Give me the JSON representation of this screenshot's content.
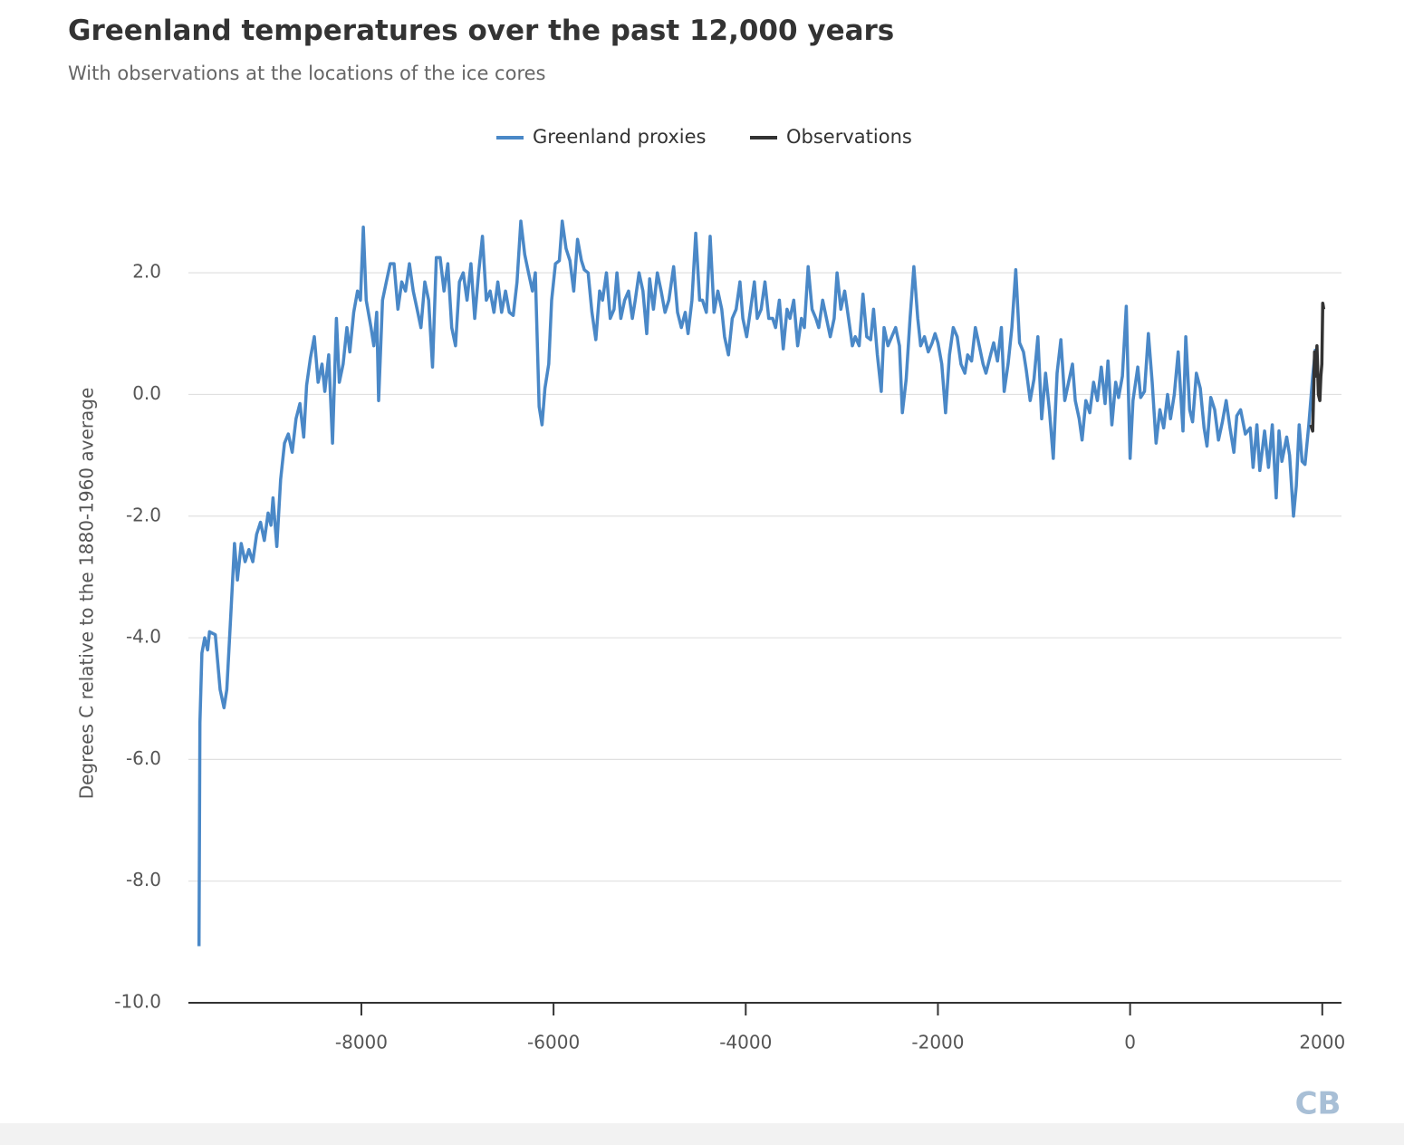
{
  "chart_data": {
    "type": "line",
    "title": "Greenland temperatures over the past 12,000 years",
    "subtitle": "With observations at the locations of the ice cores",
    "y_label": "Degrees C relative to the 1880-1960 average",
    "logo": "CB",
    "xlim": [
      -9800,
      2200
    ],
    "xticks": [
      -8000,
      -6000,
      -4000,
      -2000,
      0,
      2000
    ],
    "ylim": [
      -10,
      3
    ],
    "yticks": [
      {
        "value": -10,
        "label": "-10.0"
      },
      {
        "value": -8,
        "label": "-8.0"
      },
      {
        "value": -6,
        "label": "-6.0"
      },
      {
        "value": -4,
        "label": "-4.0"
      },
      {
        "value": -2,
        "label": "-2.0"
      },
      {
        "value": 0,
        "label": "0.0"
      },
      {
        "value": 2,
        "label": "2.0"
      }
    ],
    "grid": true,
    "legend": "top",
    "series": [
      {
        "name": "Greenland proxies",
        "color": "#4a88c7",
        "x": [
          -9690,
          -9680,
          -9660,
          -9630,
          -9600,
          -9580,
          -9520,
          -9470,
          -9430,
          -9400,
          -9360,
          -9320,
          -9290,
          -9250,
          -9210,
          -9170,
          -9130,
          -9090,
          -9050,
          -9010,
          -8970,
          -8940,
          -8920,
          -8880,
          -8840,
          -8800,
          -8760,
          -8720,
          -8680,
          -8640,
          -8600,
          -8570,
          -8530,
          -8490,
          -8450,
          -8410,
          -8380,
          -8340,
          -8300,
          -8260,
          -8230,
          -8190,
          -8150,
          -8120,
          -8080,
          -8040,
          -8010,
          -7980,
          -7950,
          -7900,
          -7870,
          -7840,
          -7820,
          -7780,
          -7740,
          -7700,
          -7660,
          -7620,
          -7580,
          -7540,
          -7500,
          -7460,
          -7420,
          -7380,
          -7340,
          -7300,
          -7260,
          -7220,
          -7180,
          -7140,
          -7100,
          -7060,
          -7020,
          -6980,
          -6940,
          -6900,
          -6860,
          -6820,
          -6780,
          -6740,
          -6700,
          -6660,
          -6620,
          -6580,
          -6540,
          -6500,
          -6460,
          -6420,
          -6380,
          -6340,
          -6300,
          -6260,
          -6220,
          -6190,
          -6150,
          -6120,
          -6090,
          -6050,
          -6020,
          -5980,
          -5940,
          -5910,
          -5870,
          -5830,
          -5790,
          -5750,
          -5710,
          -5680,
          -5640,
          -5600,
          -5560,
          -5520,
          -5490,
          -5450,
          -5410,
          -5370,
          -5340,
          -5300,
          -5260,
          -5220,
          -5180,
          -5150,
          -5110,
          -5070,
          -5030,
          -5000,
          -4960,
          -4920,
          -4880,
          -4840,
          -4800,
          -4750,
          -4710,
          -4670,
          -4630,
          -4600,
          -4560,
          -4520,
          -4480,
          -4450,
          -4410,
          -4370,
          -4330,
          -4290,
          -4250,
          -4220,
          -4180,
          -4140,
          -4100,
          -4060,
          -4030,
          -3990,
          -3950,
          -3910,
          -3880,
          -3840,
          -3800,
          -3760,
          -3720,
          -3690,
          -3650,
          -3610,
          -3570,
          -3540,
          -3500,
          -3460,
          -3420,
          -3390,
          -3350,
          -3310,
          -3270,
          -3240,
          -3200,
          -3160,
          -3120,
          -3080,
          -3050,
          -3010,
          -2970,
          -2930,
          -2890,
          -2860,
          -2820,
          -2780,
          -2740,
          -2700,
          -2670,
          -2630,
          -2590,
          -2560,
          -2520,
          -2480,
          -2440,
          -2400,
          -2370,
          -2330,
          -2290,
          -2250,
          -2210,
          -2180,
          -2140,
          -2100,
          -2060,
          -2030,
          -2000,
          -1960,
          -1920,
          -1880,
          -1840,
          -1800,
          -1760,
          -1720,
          -1690,
          -1650,
          -1610,
          -1570,
          -1530,
          -1500,
          -1460,
          -1420,
          -1380,
          -1340,
          -1310,
          -1270,
          -1230,
          -1190,
          -1150,
          -1110,
          -1080,
          -1040,
          -1000,
          -960,
          -920,
          -880,
          -840,
          -800,
          -760,
          -720,
          -680,
          -640,
          -600,
          -570,
          -530,
          -500,
          -460,
          -420,
          -380,
          -340,
          -300,
          -260,
          -230,
          -190,
          -150,
          -120,
          -80,
          -40,
          0,
          30,
          80,
          110,
          150,
          190,
          230,
          270,
          310,
          350,
          390,
          420,
          460,
          500,
          550,
          580,
          620,
          650,
          690,
          730,
          770,
          800,
          840,
          880,
          920,
          960,
          1000,
          1040,
          1080,
          1110,
          1150,
          1200,
          1250,
          1280,
          1320,
          1350,
          1400,
          1440,
          1480,
          1520,
          1550,
          1580,
          1630,
          1660,
          1700,
          1730,
          1760,
          1790,
          1820,
          1860,
          1900,
          1930
        ],
        "values": [
          -9.07,
          -5.4,
          -4.25,
          -4.0,
          -4.2,
          -3.9,
          -3.95,
          -4.85,
          -5.15,
          -4.85,
          -3.65,
          -2.45,
          -3.05,
          -2.45,
          -2.75,
          -2.55,
          -2.75,
          -2.3,
          -2.1,
          -2.4,
          -1.95,
          -2.15,
          -1.7,
          -2.5,
          -1.4,
          -0.8,
          -0.65,
          -0.95,
          -0.4,
          -0.15,
          -0.7,
          0.15,
          0.6,
          0.95,
          0.2,
          0.5,
          0.05,
          0.65,
          -0.8,
          1.25,
          0.2,
          0.5,
          1.1,
          0.7,
          1.35,
          1.7,
          1.55,
          2.75,
          1.55,
          1.1,
          0.8,
          1.35,
          -0.1,
          1.55,
          1.85,
          2.15,
          2.15,
          1.4,
          1.85,
          1.7,
          2.15,
          1.7,
          1.4,
          1.1,
          1.85,
          1.55,
          0.45,
          2.25,
          2.25,
          1.7,
          2.15,
          1.1,
          0.8,
          1.85,
          2.0,
          1.55,
          2.15,
          1.25,
          2.0,
          2.6,
          1.55,
          1.7,
          1.35,
          1.85,
          1.35,
          1.7,
          1.35,
          1.3,
          1.85,
          2.85,
          2.3,
          2.0,
          1.7,
          2.0,
          -0.2,
          -0.5,
          0.1,
          0.5,
          1.55,
          2.15,
          2.2,
          2.85,
          2.4,
          2.2,
          1.7,
          2.55,
          2.2,
          2.05,
          2.0,
          1.35,
          0.9,
          1.7,
          1.55,
          2.0,
          1.25,
          1.4,
          2.0,
          1.25,
          1.55,
          1.7,
          1.25,
          1.55,
          2.0,
          1.7,
          1.0,
          1.9,
          1.4,
          2.0,
          1.7,
          1.35,
          1.55,
          2.1,
          1.35,
          1.1,
          1.35,
          1.0,
          1.55,
          2.65,
          1.55,
          1.55,
          1.35,
          2.6,
          1.35,
          1.7,
          1.4,
          0.95,
          0.65,
          1.25,
          1.4,
          1.85,
          1.25,
          0.95,
          1.4,
          1.85,
          1.25,
          1.4,
          1.85,
          1.25,
          1.25,
          1.1,
          1.55,
          0.75,
          1.4,
          1.25,
          1.55,
          0.8,
          1.25,
          1.1,
          2.1,
          1.4,
          1.25,
          1.1,
          1.55,
          1.25,
          0.95,
          1.25,
          2.0,
          1.4,
          1.7,
          1.25,
          0.8,
          0.95,
          0.8,
          1.65,
          0.95,
          0.9,
          1.4,
          0.65,
          0.05,
          1.1,
          0.8,
          0.95,
          1.1,
          0.8,
          -0.3,
          0.25,
          1.25,
          2.1,
          1.25,
          0.8,
          0.95,
          0.7,
          0.85,
          1.0,
          0.85,
          0.5,
          -0.3,
          0.65,
          1.1,
          0.95,
          0.5,
          0.35,
          0.65,
          0.55,
          1.1,
          0.8,
          0.5,
          0.35,
          0.6,
          0.85,
          0.55,
          1.1,
          0.05,
          0.5,
          1.1,
          2.05,
          0.85,
          0.7,
          0.4,
          -0.1,
          0.25,
          0.95,
          -0.4,
          0.35,
          -0.25,
          -1.05,
          0.35,
          0.9,
          -0.1,
          0.2,
          0.5,
          -0.1,
          -0.4,
          -0.75,
          -0.1,
          -0.3,
          0.2,
          -0.1,
          0.45,
          -0.15,
          0.55,
          -0.5,
          0.2,
          -0.05,
          0.3,
          1.45,
          -1.05,
          -0.1,
          0.45,
          -0.05,
          0.05,
          1.0,
          0.2,
          -0.8,
          -0.25,
          -0.55,
          0.0,
          -0.4,
          0.0,
          0.7,
          -0.6,
          0.95,
          -0.25,
          -0.45,
          0.35,
          0.1,
          -0.55,
          -0.85,
          -0.05,
          -0.25,
          -0.75,
          -0.45,
          -0.1,
          -0.55,
          -0.95,
          -0.35,
          -0.25,
          -0.65,
          -0.55,
          -1.2,
          -0.5,
          -1.25,
          -0.6,
          -1.2,
          -0.5,
          -1.7,
          -0.6,
          -1.1,
          -0.7,
          -1.0,
          -2.0,
          -1.5,
          -0.5,
          -1.1,
          -1.15,
          -0.5,
          0.3,
          0.75
        ]
      },
      {
        "name": "Observations",
        "color": "#333333",
        "x": [
          1880,
          1900,
          1920,
          1930,
          1945,
          1960,
          1975,
          1985,
          1995,
          2005,
          2015
        ],
        "values": [
          -0.5,
          -0.6,
          0.7,
          0.3,
          0.8,
          0.0,
          -0.1,
          0.3,
          0.5,
          1.5,
          1.4
        ]
      }
    ]
  }
}
